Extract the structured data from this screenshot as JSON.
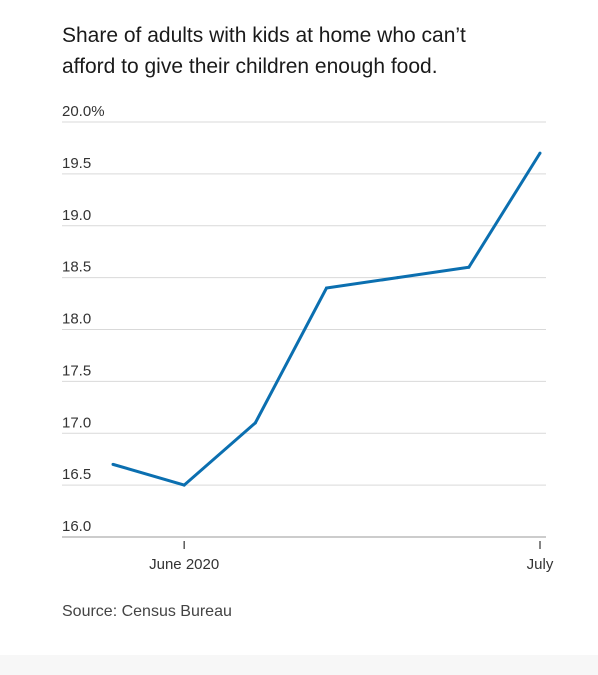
{
  "chart_data": {
    "type": "line",
    "title_lines": [
      "Share of adults with kids at home who can’t",
      "afford to give their children enough food."
    ],
    "y_ticks": [
      {
        "value": 20.0,
        "label": "20.0%"
      },
      {
        "value": 19.5,
        "label": "19.5"
      },
      {
        "value": 19.0,
        "label": "19.0"
      },
      {
        "value": 18.5,
        "label": "18.5"
      },
      {
        "value": 18.0,
        "label": "18.0"
      },
      {
        "value": 17.5,
        "label": "17.5"
      },
      {
        "value": 17.0,
        "label": "17.0"
      },
      {
        "value": 16.5,
        "label": "16.5"
      },
      {
        "value": 16.0,
        "label": "16.0"
      }
    ],
    "x_ticks": [
      {
        "index": 1,
        "label": "June 2020"
      },
      {
        "index": 6,
        "label": "July"
      }
    ],
    "ylim": [
      16.0,
      20.0
    ],
    "grid": true,
    "series": [
      {
        "values": [
          16.7,
          16.5,
          17.1,
          18.4,
          18.5,
          18.6,
          19.7
        ]
      }
    ],
    "line_color": "#0b6fb0",
    "source": "Source: Census Bureau"
  }
}
